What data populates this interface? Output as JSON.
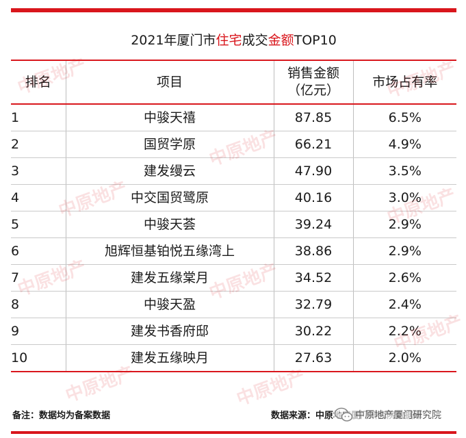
{
  "title": {
    "part1": "2021年厦门市",
    "part2": "住宅",
    "part3": "成交",
    "part4": "金额",
    "part5": "TOP10"
  },
  "table": {
    "headers": {
      "rank": "排名",
      "project": "项目",
      "amount_line1": "销售金额",
      "amount_line2": "（亿元）",
      "share": "市场占有率"
    },
    "rows": [
      {
        "rank": "1",
        "name": "中骏天禧",
        "amount": "87.85",
        "share": "6.5%"
      },
      {
        "rank": "2",
        "name": "国贸学原",
        "amount": "66.21",
        "share": "4.9%"
      },
      {
        "rank": "3",
        "name": "建发缦云",
        "amount": "47.90",
        "share": "3.5%"
      },
      {
        "rank": "4",
        "name": "中交国贸鹭原",
        "amount": "40.16",
        "share": "3.0%"
      },
      {
        "rank": "5",
        "name": "中骏天荟",
        "amount": "39.24",
        "share": "2.9%"
      },
      {
        "rank": "6",
        "name": "旭辉恒基铂悦五缘湾上",
        "amount": "38.86",
        "share": "2.9%"
      },
      {
        "rank": "7",
        "name": "建发五缘棠月",
        "amount": "34.52",
        "share": "2.6%"
      },
      {
        "rank": "8",
        "name": "中骏天盈",
        "amount": "32.79",
        "share": "2.4%"
      },
      {
        "rank": "9",
        "name": "建发书香府邸",
        "amount": "30.22",
        "share": "2.2%"
      },
      {
        "rank": "10",
        "name": "建发五缘映月",
        "amount": "27.63",
        "share": "2.0%"
      }
    ]
  },
  "footer": {
    "note": "备注：数据均为备案数据",
    "source_label": "数据来源：",
    "source_org": "中原地产厦门研究院数据库"
  },
  "wechat": {
    "account": "中原地产厦门研究院",
    "icon": "wechat-icon"
  },
  "watermark": {
    "text": "中原地产"
  },
  "colors": {
    "accent": "#d9161c"
  }
}
